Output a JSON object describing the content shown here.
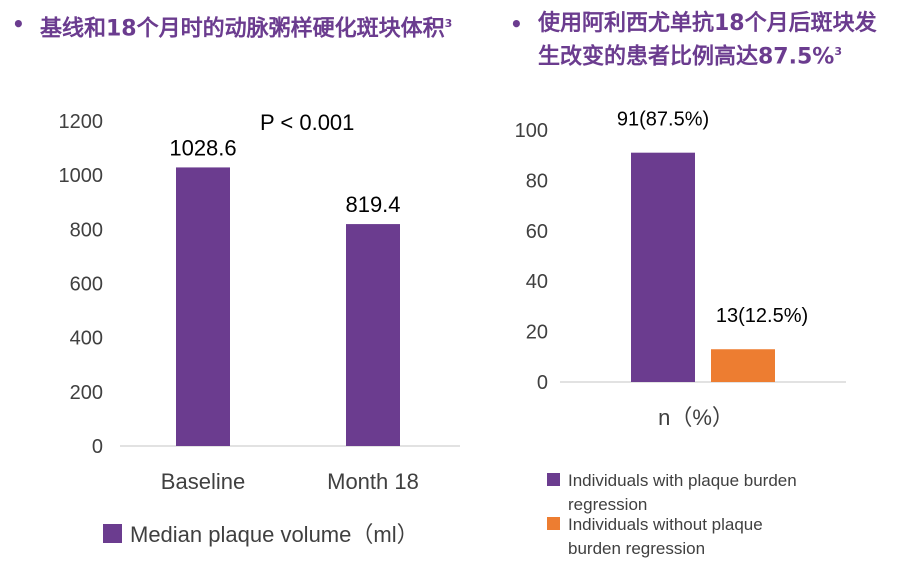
{
  "headings": {
    "left": {
      "bullet": "•",
      "text": "基线和18个月时的动脉粥样硬化斑块体积",
      "sup": "3"
    },
    "right": {
      "bullet": "•",
      "text": "使用阿利西尤单抗18个月后斑块发生改变的患者比例高达87.5%",
      "sup": "3"
    }
  },
  "colors": {
    "purple": "#6b3c8f",
    "orange": "#ed7d31",
    "axis": "#d9d9d9",
    "text": "#404040"
  },
  "chart_data": [
    {
      "type": "bar",
      "categories": [
        "Baseline",
        "Month 18"
      ],
      "values": [
        1028.6,
        819.4
      ],
      "data_labels": [
        "1028.6",
        "819.4"
      ],
      "ylim": [
        0,
        1200
      ],
      "yticks": [
        "0",
        "200",
        "400",
        "600",
        "800",
        "1000",
        "1200"
      ],
      "ytick_values": [
        0,
        200,
        400,
        600,
        800,
        1000,
        1200
      ],
      "annotation": "P < 0.001",
      "legend": [
        {
          "name": "Median plaque volume（ml）",
          "color": "#6b3c8f"
        }
      ],
      "legend_position": "bottom",
      "grid": false
    },
    {
      "type": "bar",
      "xlabel": "n（%）",
      "series": [
        {
          "name": "Individuals with plaque burden regression",
          "value": 91,
          "percent": 87.5,
          "label": "91(87.5%)",
          "color": "#6b3c8f"
        },
        {
          "name": "Individuals without plaque burden regression",
          "value": 13,
          "percent": 12.5,
          "label": "13(12.5%)",
          "color": "#ed7d31"
        }
      ],
      "ylim": [
        0,
        100
      ],
      "yticks": [
        "0",
        "20",
        "40",
        "60",
        "80",
        "100"
      ],
      "ytick_values": [
        0,
        20,
        40,
        60,
        80,
        100
      ],
      "legend_position": "bottom",
      "grid": false
    }
  ]
}
